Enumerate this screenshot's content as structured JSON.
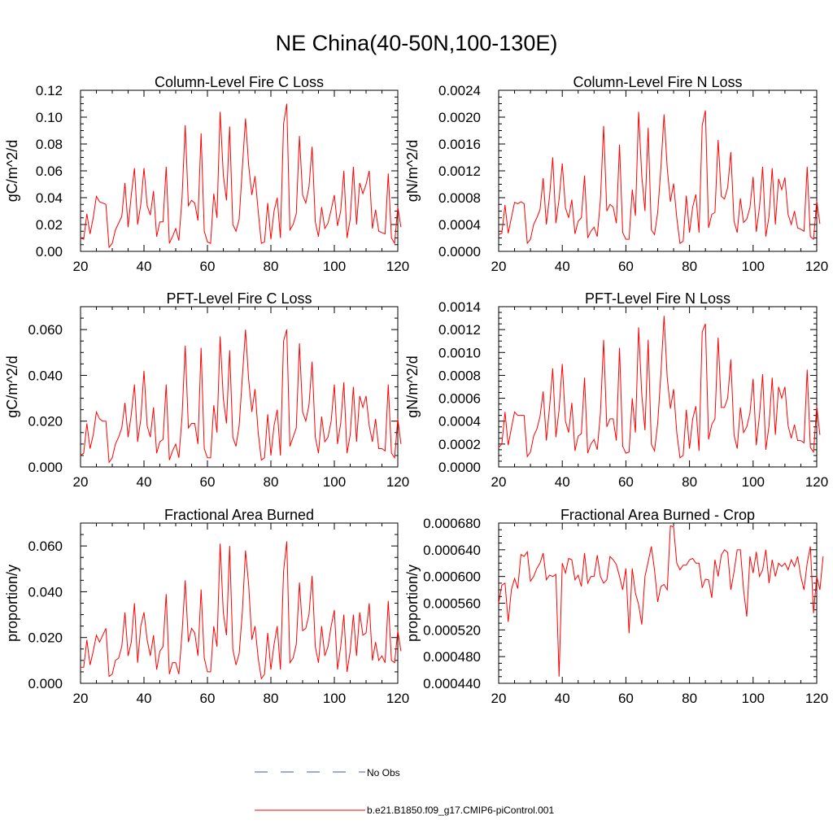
{
  "figure": {
    "title": "NE China(40-50N,100-130E)"
  },
  "legend": {
    "items": [
      {
        "label": "No Obs",
        "color": "#4455aa",
        "dash": true
      },
      {
        "label": "b.e21.B1850.f09_g17.CMIP6-piControl.001",
        "color": "#ff0000",
        "dash": false
      }
    ]
  },
  "chart_data": [
    {
      "type": "line",
      "title": "Column-Level Fire C Loss",
      "ylabel": "gC/m^2/d",
      "xlim": [
        20,
        120
      ],
      "ylim": [
        0,
        0.12
      ],
      "yticks": [
        0,
        0.02,
        0.04,
        0.06,
        0.08,
        0.1,
        0.12
      ],
      "ytick_labels": [
        "0.00",
        "0.02",
        "0.04",
        "0.06",
        "0.08",
        "0.10",
        "0.12"
      ],
      "xticks": [
        20,
        40,
        60,
        80,
        100,
        120
      ],
      "xtick_labels": [
        "20",
        "40",
        "60",
        "80",
        "100",
        "120"
      ],
      "series": [
        {
          "color": "#ff0000",
          "x_start": 20,
          "values": [
            0.01,
            0.009,
            0.028,
            0.013,
            0.025,
            0.041,
            0.037,
            0.036,
            0.035,
            0.003,
            0.006,
            0.016,
            0.021,
            0.026,
            0.051,
            0.018,
            0.042,
            0.062,
            0.02,
            0.035,
            0.062,
            0.034,
            0.027,
            0.045,
            0.011,
            0.022,
            0.022,
            0.063,
            0.006,
            0.011,
            0.017,
            0.008,
            0.04,
            0.094,
            0.034,
            0.038,
            0.036,
            0.023,
            0.088,
            0.015,
            0.007,
            0.006,
            0.043,
            0.025,
            0.104,
            0.057,
            0.038,
            0.093,
            0.02,
            0.015,
            0.024,
            0.062,
            0.099,
            0.064,
            0.042,
            0.056,
            0.03,
            0.006,
            0.007,
            0.036,
            0.009,
            0.03,
            0.04,
            0.01,
            0.095,
            0.11,
            0.016,
            0.02,
            0.028,
            0.086,
            0.042,
            0.036,
            0.048,
            0.078,
            0.022,
            0.011,
            0.033,
            0.017,
            0.021,
            0.031,
            0.042,
            0.019,
            0.03,
            0.06,
            0.01,
            0.024,
            0.063,
            0.02,
            0.051,
            0.043,
            0.05,
            0.06,
            0.017,
            0.031,
            0.015,
            0.014,
            0.013,
            0.058,
            0.01,
            0.006,
            0.033,
            0.018
          ]
        }
      ]
    },
    {
      "type": "line",
      "title": "Column-Level Fire N Loss",
      "ylabel": "gN/m^2/d",
      "xlim": [
        20,
        120
      ],
      "ylim": [
        0,
        0.0024
      ],
      "yticks": [
        0,
        0.0004,
        0.0008,
        0.0012,
        0.0016,
        0.002,
        0.0024
      ],
      "ytick_labels": [
        "0.0000",
        "0.0004",
        "0.0008",
        "0.0012",
        "0.0016",
        "0.0020",
        "0.0024"
      ],
      "xticks": [
        20,
        40,
        60,
        80,
        100,
        120
      ],
      "xtick_labels": [
        "20",
        "40",
        "60",
        "80",
        "100",
        "120"
      ],
      "series": [
        {
          "color": "#ff0000",
          "x_start": 20,
          "values": [
            0.00025,
            0.00027,
            0.00069,
            0.00027,
            0.0005,
            0.00073,
            0.00071,
            0.00074,
            0.00071,
            0.00012,
            0.00018,
            0.0004,
            0.0005,
            0.00062,
            0.00109,
            0.0004,
            0.00082,
            0.0014,
            0.00042,
            0.00078,
            0.00131,
            0.00065,
            0.0005,
            0.00077,
            0.00026,
            0.00045,
            0.0005,
            0.00113,
            0.0002,
            0.0003,
            0.00036,
            0.00022,
            0.00077,
            0.00187,
            0.0006,
            0.0007,
            0.00066,
            0.00042,
            0.00159,
            0.00028,
            0.00018,
            0.00018,
            0.00092,
            0.00053,
            0.00208,
            0.00112,
            0.0006,
            0.00184,
            0.00032,
            0.00025,
            0.00058,
            0.00124,
            0.00204,
            0.00124,
            0.00074,
            0.00101,
            0.0005,
            0.00012,
            0.00015,
            0.00083,
            0.00028,
            0.00066,
            0.00085,
            0.00028,
            0.00188,
            0.0021,
            0.00035,
            0.00055,
            0.00058,
            0.00166,
            0.00082,
            0.00078,
            0.00095,
            0.00148,
            0.00045,
            0.00028,
            0.00079,
            0.00043,
            0.00048,
            0.00065,
            0.00111,
            0.00029,
            0.00066,
            0.00126,
            0.00022,
            0.00052,
            0.00124,
            0.0004,
            0.00108,
            0.00092,
            0.0011,
            0.00055,
            0.0004,
            0.0006,
            0.00035,
            0.00033,
            0.0003,
            0.00126,
            0.00022,
            0.00018,
            0.00075,
            0.00041
          ]
        }
      ]
    },
    {
      "type": "line",
      "title": "PFT-Level Fire C Loss",
      "ylabel": "gC/m^2/d",
      "xlim": [
        20,
        120
      ],
      "ylim": [
        0,
        0.07
      ],
      "yticks": [
        0,
        0.02,
        0.04,
        0.06
      ],
      "ytick_labels": [
        "0.000",
        "0.020",
        "0.040",
        "0.060"
      ],
      "xticks": [
        20,
        40,
        60,
        80,
        100,
        120
      ],
      "xtick_labels": [
        "20",
        "40",
        "60",
        "80",
        "100",
        "120"
      ],
      "series": [
        {
          "color": "#ff0000",
          "x_start": 20,
          "values": [
            0.005,
            0.006,
            0.019,
            0.008,
            0.014,
            0.024,
            0.021,
            0.02,
            0.02,
            0.002,
            0.004,
            0.01,
            0.013,
            0.017,
            0.028,
            0.013,
            0.023,
            0.036,
            0.011,
            0.021,
            0.042,
            0.018,
            0.013,
            0.026,
            0.006,
            0.011,
            0.012,
            0.036,
            0.003,
            0.007,
            0.01,
            0.004,
            0.022,
            0.053,
            0.017,
            0.019,
            0.019,
            0.01,
            0.052,
            0.008,
            0.004,
            0.004,
            0.027,
            0.015,
            0.057,
            0.03,
            0.019,
            0.051,
            0.013,
            0.009,
            0.018,
            0.039,
            0.06,
            0.038,
            0.024,
            0.034,
            0.015,
            0.003,
            0.004,
            0.023,
            0.005,
            0.018,
            0.025,
            0.005,
            0.055,
            0.06,
            0.009,
            0.013,
            0.017,
            0.054,
            0.024,
            0.02,
            0.027,
            0.046,
            0.013,
            0.006,
            0.022,
            0.011,
            0.013,
            0.02,
            0.036,
            0.01,
            0.019,
            0.037,
            0.006,
            0.014,
            0.035,
            0.011,
            0.031,
            0.026,
            0.031,
            0.018,
            0.011,
            0.021,
            0.008,
            0.008,
            0.007,
            0.036,
            0.006,
            0.004,
            0.021,
            0.01
          ]
        }
      ]
    },
    {
      "type": "line",
      "title": "PFT-Level Fire N Loss",
      "ylabel": "gN/m^2/d",
      "xlim": [
        20,
        120
      ],
      "ylim": [
        0,
        0.0014
      ],
      "yticks": [
        0,
        0.0002,
        0.0004,
        0.0006,
        0.0008,
        0.001,
        0.0012,
        0.0014
      ],
      "ytick_labels": [
        "0.0000",
        "0.0002",
        "0.0004",
        "0.0006",
        "0.0008",
        "0.0010",
        "0.0012",
        "0.0014"
      ],
      "xticks": [
        20,
        40,
        60,
        80,
        100,
        120
      ],
      "xtick_labels": [
        "20",
        "40",
        "60",
        "80",
        "100",
        "120"
      ],
      "series": [
        {
          "color": "#ff0000",
          "x_start": 20,
          "values": [
            0.00017,
            0.0002,
            0.00048,
            0.00019,
            0.00034,
            0.00048,
            0.00045,
            0.00045,
            0.00045,
            9e-05,
            0.00013,
            0.00027,
            0.00033,
            0.00044,
            0.00066,
            0.00023,
            0.00052,
            0.00086,
            0.00026,
            0.0005,
            0.0009,
            0.0004,
            0.0003,
            0.00056,
            0.00014,
            0.00027,
            0.00029,
            0.00078,
            0.00012,
            0.0002,
            0.00024,
            0.00015,
            0.00047,
            0.00111,
            0.00035,
            0.00042,
            0.00042,
            0.00023,
            0.00104,
            0.00018,
            0.00012,
            0.00013,
            0.0006,
            0.0003,
            0.00122,
            0.00063,
            0.00032,
            0.00111,
            0.0002,
            0.00014,
            0.00038,
            0.00081,
            0.00132,
            0.00078,
            0.00051,
            0.00068,
            0.0003,
            8e-05,
            0.0001,
            0.0005,
            0.00016,
            0.00042,
            0.00053,
            0.00014,
            0.00118,
            0.00125,
            0.00024,
            0.00037,
            0.00042,
            0.00113,
            0.00052,
            0.00052,
            0.0006,
            0.00094,
            0.00028,
            0.00016,
            0.00052,
            0.0003,
            0.00035,
            0.00047,
            0.00077,
            0.00019,
            0.00045,
            0.00081,
            0.00015,
            0.00036,
            0.00078,
            0.00028,
            0.0007,
            0.0006,
            0.0007,
            0.00036,
            0.00025,
            0.00037,
            0.00023,
            0.00023,
            0.00021,
            0.00085,
            0.00017,
            0.00013,
            0.00053,
            0.00028
          ]
        }
      ]
    },
    {
      "type": "line",
      "title": "Fractional Area Burned",
      "ylabel": "proportion/y",
      "xlim": [
        20,
        120
      ],
      "ylim": [
        0,
        0.07
      ],
      "yticks": [
        0,
        0.02,
        0.04,
        0.06
      ],
      "ytick_labels": [
        "0.000",
        "0.020",
        "0.040",
        "0.060"
      ],
      "xticks": [
        20,
        40,
        60,
        80,
        100,
        120
      ],
      "xtick_labels": [
        "20",
        "40",
        "60",
        "80",
        "100",
        "120"
      ],
      "series": [
        {
          "color": "#ff0000",
          "x_start": 20,
          "values": [
            0.007,
            0.007,
            0.019,
            0.008,
            0.014,
            0.021,
            0.018,
            0.021,
            0.024,
            0.003,
            0.004,
            0.01,
            0.011,
            0.016,
            0.031,
            0.012,
            0.018,
            0.035,
            0.009,
            0.025,
            0.031,
            0.019,
            0.012,
            0.021,
            0.006,
            0.014,
            0.016,
            0.039,
            0.004,
            0.009,
            0.009,
            0.004,
            0.022,
            0.045,
            0.018,
            0.024,
            0.022,
            0.012,
            0.041,
            0.011,
            0.005,
            0.005,
            0.025,
            0.016,
            0.061,
            0.031,
            0.021,
            0.06,
            0.015,
            0.008,
            0.013,
            0.031,
            0.058,
            0.043,
            0.019,
            0.025,
            0.011,
            0.002,
            0.004,
            0.022,
            0.006,
            0.017,
            0.025,
            0.006,
            0.049,
            0.062,
            0.009,
            0.011,
            0.017,
            0.044,
            0.023,
            0.024,
            0.03,
            0.047,
            0.016,
            0.009,
            0.025,
            0.012,
            0.016,
            0.025,
            0.032,
            0.006,
            0.016,
            0.03,
            0.005,
            0.014,
            0.03,
            0.012,
            0.031,
            0.021,
            0.022,
            0.035,
            0.01,
            0.018,
            0.01,
            0.012,
            0.009,
            0.036,
            0.01,
            0.009,
            0.023,
            0.014
          ]
        }
      ]
    },
    {
      "type": "line",
      "title": "Fractional Area Burned - Crop",
      "ylabel": "proportion/y",
      "xlim": [
        20,
        120
      ],
      "ylim": [
        0.00044,
        0.00068
      ],
      "yticks": [
        0.00044,
        0.00048,
        0.00052,
        0.00056,
        0.0006,
        0.00064,
        0.00068
      ],
      "ytick_labels": [
        "0.000440",
        "0.000480",
        "0.000520",
        "0.000560",
        "0.000600",
        "0.000640",
        "0.000680"
      ],
      "xticks": [
        20,
        40,
        60,
        80,
        100,
        120
      ],
      "xtick_labels": [
        "20",
        "40",
        "60",
        "80",
        "100",
        "120"
      ],
      "series": [
        {
          "color": "#ff0000",
          "x_start": 20,
          "values": [
            0.00056,
            0.000587,
            0.00059,
            0.000532,
            0.00058,
            0.000597,
            0.000582,
            0.000633,
            0.00063,
            0.000637,
            0.000593,
            0.0006,
            0.000612,
            0.00062,
            0.000635,
            0.000595,
            0.000602,
            0.0006,
            0.000603,
            0.00045,
            0.00062,
            0.000605,
            0.000627,
            0.000625,
            0.000595,
            0.000602,
            0.000585,
            0.000635,
            0.00059,
            0.0006,
            0.0006,
            0.000632,
            0.0006,
            0.00059,
            0.000595,
            0.00063,
            0.000625,
            0.000618,
            0.0006,
            0.00058,
            0.000612,
            0.000515,
            0.000612,
            0.000575,
            0.000558,
            0.000528,
            0.0006,
            0.000622,
            0.000645,
            0.00061,
            0.000562,
            0.000585,
            0.000588,
            0.00058,
            0.000676,
            0.000674,
            0.00062,
            0.00061,
            0.000617,
            0.000617,
            0.000625,
            0.000627,
            0.00062,
            0.00062,
            0.000583,
            0.000596,
            0.000595,
            0.000568,
            0.000625,
            0.0006,
            0.000632,
            0.00064,
            0.000636,
            0.00058,
            0.000607,
            0.00064,
            0.00064,
            0.00058,
            0.00054,
            0.00063,
            0.000605,
            0.000637,
            0.0006,
            0.00061,
            0.00064,
            0.00059,
            0.000625,
            0.0006,
            0.00062,
            0.000615,
            0.00062,
            0.00061,
            0.000625,
            0.000615,
            0.00063,
            0.0006,
            0.00058,
            0.00062,
            0.000645,
            0.000545,
            0.0006,
            0.00058,
            0.00063
          ]
        }
      ]
    }
  ]
}
